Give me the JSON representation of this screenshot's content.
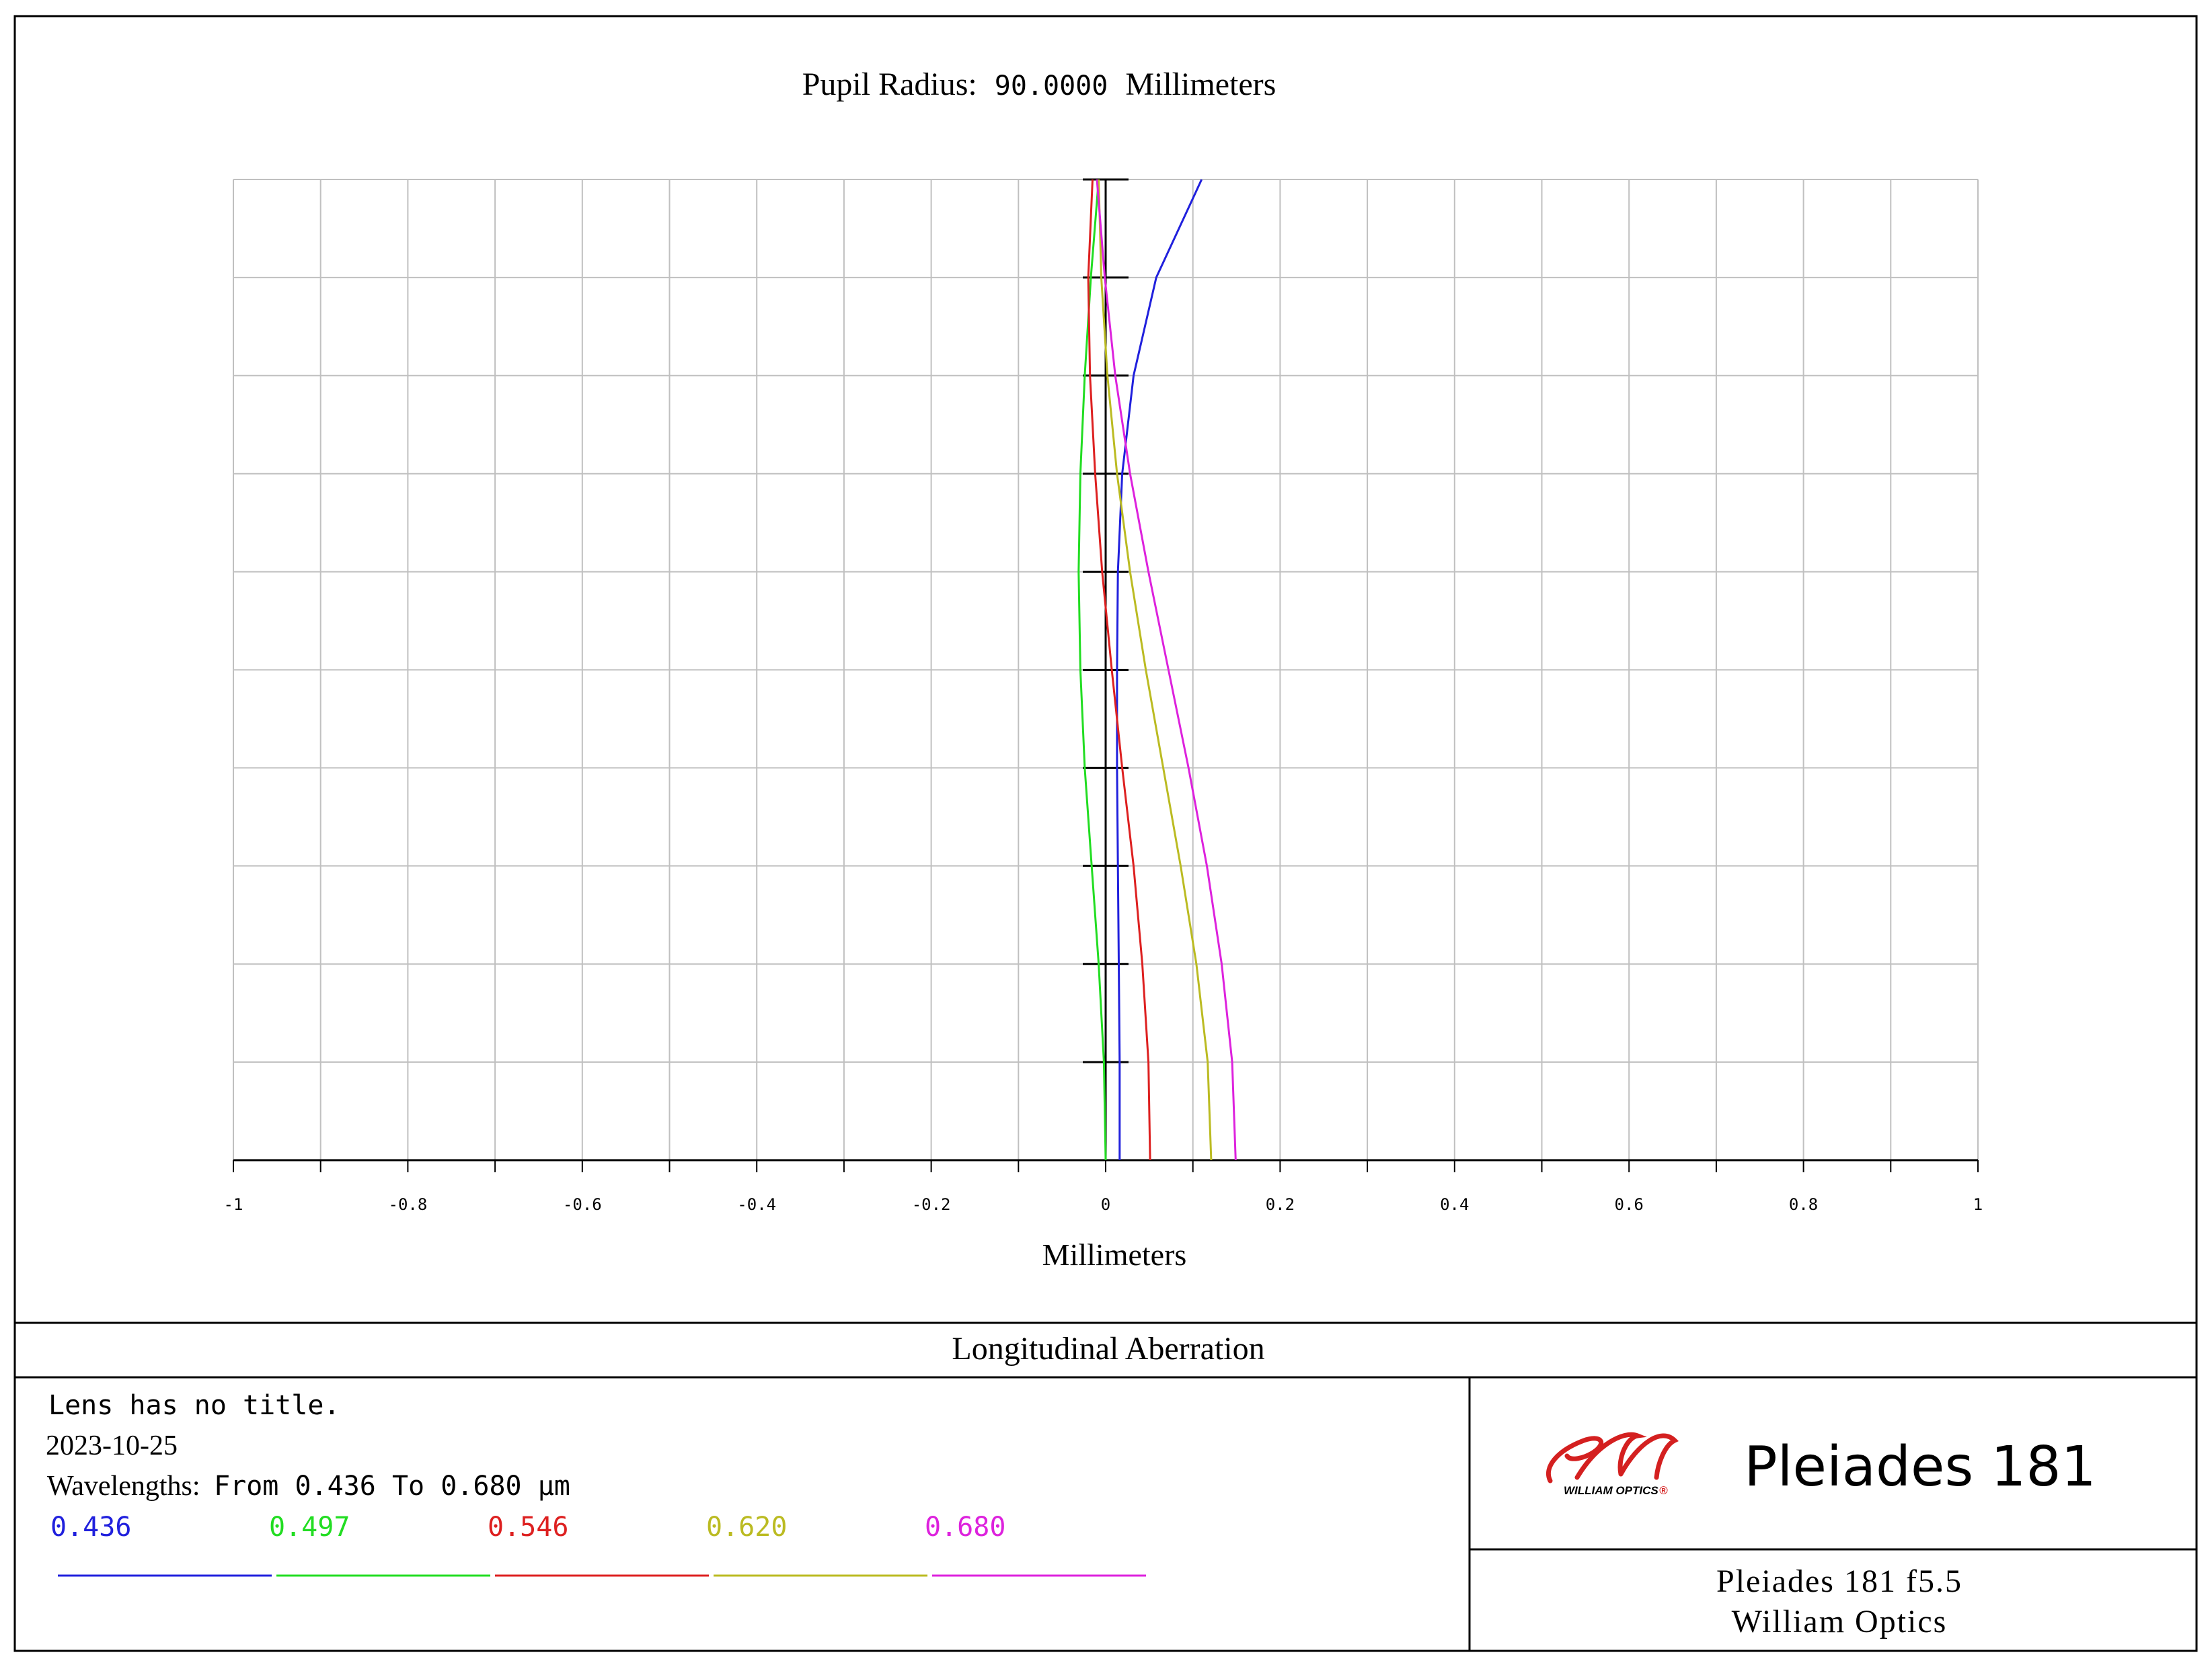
{
  "header": {
    "pupil_label": "Pupil Radius:",
    "pupil_value": "90.0000",
    "pupil_unit": "Millimeters"
  },
  "plot_title": "Longitudinal Aberration",
  "info": {
    "lens_title": "Lens has no title.",
    "date": "2023-10-25",
    "wavelengths_label": "Wavelengths:",
    "wavelengths_range": "From 0.436 To 0.680 μm"
  },
  "logo": {
    "text": "WILLIAM OPTICS",
    "registered": "®",
    "color": "#d42020"
  },
  "brand": {
    "title": "Pleiades 181",
    "subtitle": "Pleiades 181 f5.5",
    "company": "William Optics"
  },
  "colors": {
    "axis": "#000000",
    "grid": "#c0c0c0"
  },
  "chart_data": {
    "type": "line",
    "title": "Pupil Radius: 90.0000 Millimeters",
    "xlabel": "Millimeters",
    "ylabel": "",
    "xlim": [
      -1,
      1
    ],
    "ylim": [
      0,
      1
    ],
    "x_ticks": [
      -1,
      -0.8,
      -0.6,
      -0.4,
      -0.2,
      0,
      0.2,
      0.4,
      0.6,
      0.8,
      1
    ],
    "x_tick_labels": [
      "-1",
      "-0.8",
      "-0.6",
      "-0.4",
      "-0.2",
      "0",
      "0.2",
      "0.4",
      "0.6",
      "0.8",
      "1"
    ],
    "grid": true,
    "legend_position": "bottom-left",
    "series": [
      {
        "name": "0.436",
        "color": "#2020dd",
        "points": [
          [
            0.016,
            0.0
          ],
          [
            0.016,
            0.1
          ],
          [
            0.015,
            0.2
          ],
          [
            0.014,
            0.3
          ],
          [
            0.013,
            0.4
          ],
          [
            0.013,
            0.5
          ],
          [
            0.014,
            0.6
          ],
          [
            0.019,
            0.7
          ],
          [
            0.032,
            0.8
          ],
          [
            0.058,
            0.9
          ],
          [
            0.11,
            1.0
          ]
        ]
      },
      {
        "name": "0.497",
        "color": "#22dd22",
        "points": [
          [
            0.0,
            0.0
          ],
          [
            -0.002,
            0.1
          ],
          [
            -0.008,
            0.2
          ],
          [
            -0.016,
            0.3
          ],
          [
            -0.024,
            0.4
          ],
          [
            -0.029,
            0.5
          ],
          [
            -0.031,
            0.6
          ],
          [
            -0.029,
            0.7
          ],
          [
            -0.024,
            0.8
          ],
          [
            -0.017,
            0.9
          ],
          [
            -0.008,
            1.0
          ]
        ]
      },
      {
        "name": "0.546",
        "color": "#dd2020",
        "points": [
          [
            0.051,
            0.0
          ],
          [
            0.049,
            0.1
          ],
          [
            0.042,
            0.2
          ],
          [
            0.032,
            0.3
          ],
          [
            0.019,
            0.4
          ],
          [
            0.007,
            0.5
          ],
          [
            -0.004,
            0.6
          ],
          [
            -0.012,
            0.7
          ],
          [
            -0.018,
            0.8
          ],
          [
            -0.02,
            0.9
          ],
          [
            -0.015,
            1.0
          ]
        ]
      },
      {
        "name": "0.620",
        "color": "#bbbb22",
        "points": [
          [
            0.121,
            0.0
          ],
          [
            0.117,
            0.1
          ],
          [
            0.104,
            0.2
          ],
          [
            0.086,
            0.3
          ],
          [
            0.066,
            0.4
          ],
          [
            0.046,
            0.5
          ],
          [
            0.028,
            0.6
          ],
          [
            0.013,
            0.7
          ],
          [
            0.002,
            0.8
          ],
          [
            -0.005,
            0.9
          ],
          [
            -0.008,
            1.0
          ]
        ]
      },
      {
        "name": "0.680",
        "color": "#dd22dd",
        "points": [
          [
            0.149,
            0.0
          ],
          [
            0.145,
            0.1
          ],
          [
            0.133,
            0.2
          ],
          [
            0.116,
            0.3
          ],
          [
            0.095,
            0.4
          ],
          [
            0.072,
            0.5
          ],
          [
            0.049,
            0.6
          ],
          [
            0.028,
            0.7
          ],
          [
            0.011,
            0.8
          ],
          [
            -0.001,
            0.9
          ],
          [
            -0.01,
            1.0
          ]
        ]
      }
    ]
  }
}
